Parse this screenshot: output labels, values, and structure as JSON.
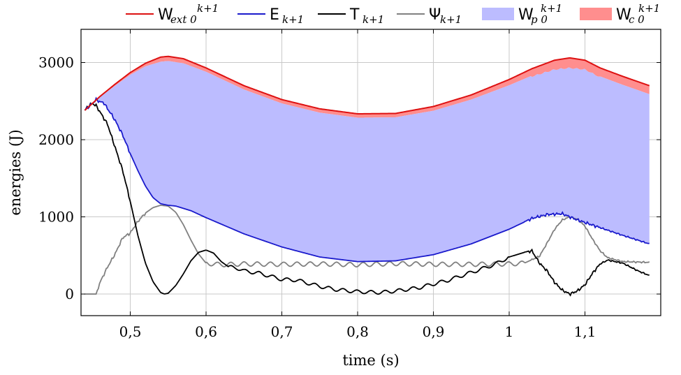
{
  "chart_data": {
    "type": "area",
    "xlabel": "time (s)",
    "ylabel": "energies (J)",
    "xlim": [
      0.435,
      1.2
    ],
    "ylim": [
      -280,
      3430
    ],
    "x_ticks": [
      {
        "value": 0.5,
        "label": "0,5"
      },
      {
        "value": 0.6,
        "label": "0,6"
      },
      {
        "value": 0.7,
        "label": "0,7"
      },
      {
        "value": 0.8,
        "label": "0,8"
      },
      {
        "value": 0.9,
        "label": "0,9"
      },
      {
        "value": 1.0,
        "label": "1"
      },
      {
        "value": 1.1,
        "label": "1,1"
      }
    ],
    "y_ticks": [
      {
        "value": 0,
        "label": "0"
      },
      {
        "value": 1000,
        "label": "1000"
      },
      {
        "value": 2000,
        "label": "2000"
      },
      {
        "value": 3000,
        "label": "3000"
      }
    ],
    "grid": true,
    "legend_position": "top",
    "legend": [
      {
        "key": "wext",
        "type": "line",
        "color": "#dd1111",
        "main": "W",
        "sub": "ext  0",
        "sup": "k+1"
      },
      {
        "key": "e",
        "type": "line",
        "color": "#1a1acc",
        "main": "E",
        "sub": "k+1",
        "sup": ""
      },
      {
        "key": "t",
        "type": "line",
        "color": "#000000",
        "main": "T",
        "sub": "k+1",
        "sup": ""
      },
      {
        "key": "psi",
        "type": "line",
        "color": "#808080",
        "main": "Ψ",
        "sub": "k+1",
        "sup": ""
      },
      {
        "key": "wp",
        "type": "area",
        "color": "#bcbcff",
        "main": "W",
        "sub": "p  0",
        "sup": "k+1"
      },
      {
        "key": "wc",
        "type": "area",
        "color": "#ff8e8e",
        "main": "W",
        "sub": "c  0",
        "sup": "k+1"
      }
    ],
    "series": [
      {
        "key": "wext",
        "name": "W_ext 0 k+1",
        "color": "#dd1111",
        "points": [
          [
            0.44,
            2380
          ],
          [
            0.45,
            2470
          ],
          [
            0.46,
            2560
          ],
          [
            0.48,
            2720
          ],
          [
            0.5,
            2870
          ],
          [
            0.52,
            2990
          ],
          [
            0.54,
            3070
          ],
          [
            0.55,
            3080
          ],
          [
            0.57,
            3050
          ],
          [
            0.6,
            2930
          ],
          [
            0.65,
            2700
          ],
          [
            0.7,
            2520
          ],
          [
            0.75,
            2400
          ],
          [
            0.8,
            2335
          ],
          [
            0.85,
            2340
          ],
          [
            0.9,
            2430
          ],
          [
            0.95,
            2580
          ],
          [
            1.0,
            2780
          ],
          [
            1.03,
            2920
          ],
          [
            1.06,
            3030
          ],
          [
            1.08,
            3060
          ],
          [
            1.1,
            3030
          ],
          [
            1.12,
            2930
          ],
          [
            1.15,
            2820
          ],
          [
            1.185,
            2700
          ]
        ]
      },
      {
        "key": "wp_top",
        "name": "W_p 0 k+1 upper edge",
        "color": "#bcbcff",
        "points": [
          [
            0.44,
            2380
          ],
          [
            0.45,
            2470
          ],
          [
            0.46,
            2550
          ],
          [
            0.48,
            2700
          ],
          [
            0.5,
            2840
          ],
          [
            0.52,
            2950
          ],
          [
            0.54,
            3010
          ],
          [
            0.55,
            3020
          ],
          [
            0.57,
            2990
          ],
          [
            0.6,
            2880
          ],
          [
            0.65,
            2650
          ],
          [
            0.7,
            2470
          ],
          [
            0.75,
            2350
          ],
          [
            0.8,
            2285
          ],
          [
            0.85,
            2290
          ],
          [
            0.9,
            2375
          ],
          [
            0.95,
            2520
          ],
          [
            1.0,
            2705
          ],
          [
            1.03,
            2830
          ],
          [
            1.06,
            2920
          ],
          [
            1.08,
            2940
          ],
          [
            1.1,
            2920
          ],
          [
            1.12,
            2820
          ],
          [
            1.15,
            2710
          ],
          [
            1.185,
            2590
          ]
        ]
      },
      {
        "key": "e",
        "name": "E_k+1",
        "color": "#1a1acc",
        "points": [
          [
            0.44,
            2380
          ],
          [
            0.45,
            2470
          ],
          [
            0.455,
            2520
          ],
          [
            0.46,
            2490
          ],
          [
            0.465,
            2480
          ],
          [
            0.47,
            2400
          ],
          [
            0.475,
            2330
          ],
          [
            0.48,
            2250
          ],
          [
            0.49,
            2060
          ],
          [
            0.5,
            1820
          ],
          [
            0.51,
            1600
          ],
          [
            0.52,
            1400
          ],
          [
            0.53,
            1250
          ],
          [
            0.54,
            1170
          ],
          [
            0.55,
            1150
          ],
          [
            0.56,
            1140
          ],
          [
            0.58,
            1080
          ],
          [
            0.6,
            990
          ],
          [
            0.65,
            780
          ],
          [
            0.7,
            610
          ],
          [
            0.75,
            480
          ],
          [
            0.8,
            420
          ],
          [
            0.85,
            430
          ],
          [
            0.9,
            510
          ],
          [
            0.95,
            650
          ],
          [
            1.0,
            840
          ],
          [
            1.03,
            980
          ],
          [
            1.05,
            1030
          ],
          [
            1.07,
            1040
          ],
          [
            1.09,
            960
          ],
          [
            1.12,
            860
          ],
          [
            1.15,
            760
          ],
          [
            1.185,
            650
          ]
        ]
      },
      {
        "key": "t",
        "name": "T_k+1",
        "color": "#000000",
        "points": [
          [
            0.44,
            2380
          ],
          [
            0.445,
            2440
          ],
          [
            0.45,
            2470
          ],
          [
            0.455,
            2440
          ],
          [
            0.46,
            2360
          ],
          [
            0.47,
            2200
          ],
          [
            0.48,
            1900
          ],
          [
            0.49,
            1600
          ],
          [
            0.5,
            1200
          ],
          [
            0.51,
            760
          ],
          [
            0.52,
            400
          ],
          [
            0.53,
            160
          ],
          [
            0.54,
            20
          ],
          [
            0.545,
            0
          ],
          [
            0.55,
            10
          ],
          [
            0.56,
            110
          ],
          [
            0.57,
            260
          ],
          [
            0.58,
            430
          ],
          [
            0.59,
            540
          ],
          [
            0.6,
            570
          ],
          [
            0.61,
            530
          ],
          [
            0.62,
            420
          ],
          [
            0.63,
            350
          ],
          [
            0.64,
            340
          ],
          [
            0.65,
            300
          ],
          [
            0.67,
            270
          ],
          [
            0.7,
            190
          ],
          [
            0.72,
            180
          ],
          [
            0.75,
            100
          ],
          [
            0.77,
            60
          ],
          [
            0.8,
            30
          ],
          [
            0.83,
            20
          ],
          [
            0.85,
            40
          ],
          [
            0.88,
            80
          ],
          [
            0.9,
            130
          ],
          [
            0.92,
            180
          ],
          [
            0.95,
            280
          ],
          [
            0.98,
            380
          ],
          [
            1.0,
            480
          ],
          [
            1.02,
            540
          ],
          [
            1.03,
            560
          ],
          [
            1.04,
            400
          ],
          [
            1.05,
            300
          ],
          [
            1.06,
            150
          ],
          [
            1.07,
            50
          ],
          [
            1.08,
            0
          ],
          [
            1.09,
            40
          ],
          [
            1.1,
            120
          ],
          [
            1.11,
            270
          ],
          [
            1.12,
            390
          ],
          [
            1.13,
            440
          ],
          [
            1.15,
            400
          ],
          [
            1.17,
            300
          ],
          [
            1.185,
            240
          ]
        ]
      },
      {
        "key": "psi",
        "name": "Ψ_k+1",
        "color": "#808080",
        "points": [
          [
            0.44,
            0
          ],
          [
            0.455,
            0
          ],
          [
            0.46,
            150
          ],
          [
            0.47,
            350
          ],
          [
            0.48,
            520
          ],
          [
            0.49,
            730
          ],
          [
            0.5,
            790
          ],
          [
            0.51,
            940
          ],
          [
            0.52,
            1050
          ],
          [
            0.53,
            1120
          ],
          [
            0.54,
            1150
          ],
          [
            0.55,
            1140
          ],
          [
            0.56,
            1060
          ],
          [
            0.57,
            900
          ],
          [
            0.58,
            700
          ],
          [
            0.59,
            520
          ],
          [
            0.6,
            400
          ],
          [
            0.62,
            380
          ],
          [
            0.65,
            390
          ],
          [
            0.7,
            385
          ],
          [
            0.75,
            390
          ],
          [
            0.8,
            380
          ],
          [
            0.85,
            395
          ],
          [
            0.9,
            385
          ],
          [
            0.95,
            385
          ],
          [
            1.0,
            390
          ],
          [
            1.02,
            400
          ],
          [
            1.04,
            490
          ],
          [
            1.05,
            660
          ],
          [
            1.06,
            840
          ],
          [
            1.07,
            960
          ],
          [
            1.08,
            1000
          ],
          [
            1.09,
            970
          ],
          [
            1.1,
            880
          ],
          [
            1.11,
            710
          ],
          [
            1.12,
            560
          ],
          [
            1.13,
            470
          ],
          [
            1.15,
            420
          ],
          [
            1.185,
            410
          ]
        ]
      }
    ]
  }
}
